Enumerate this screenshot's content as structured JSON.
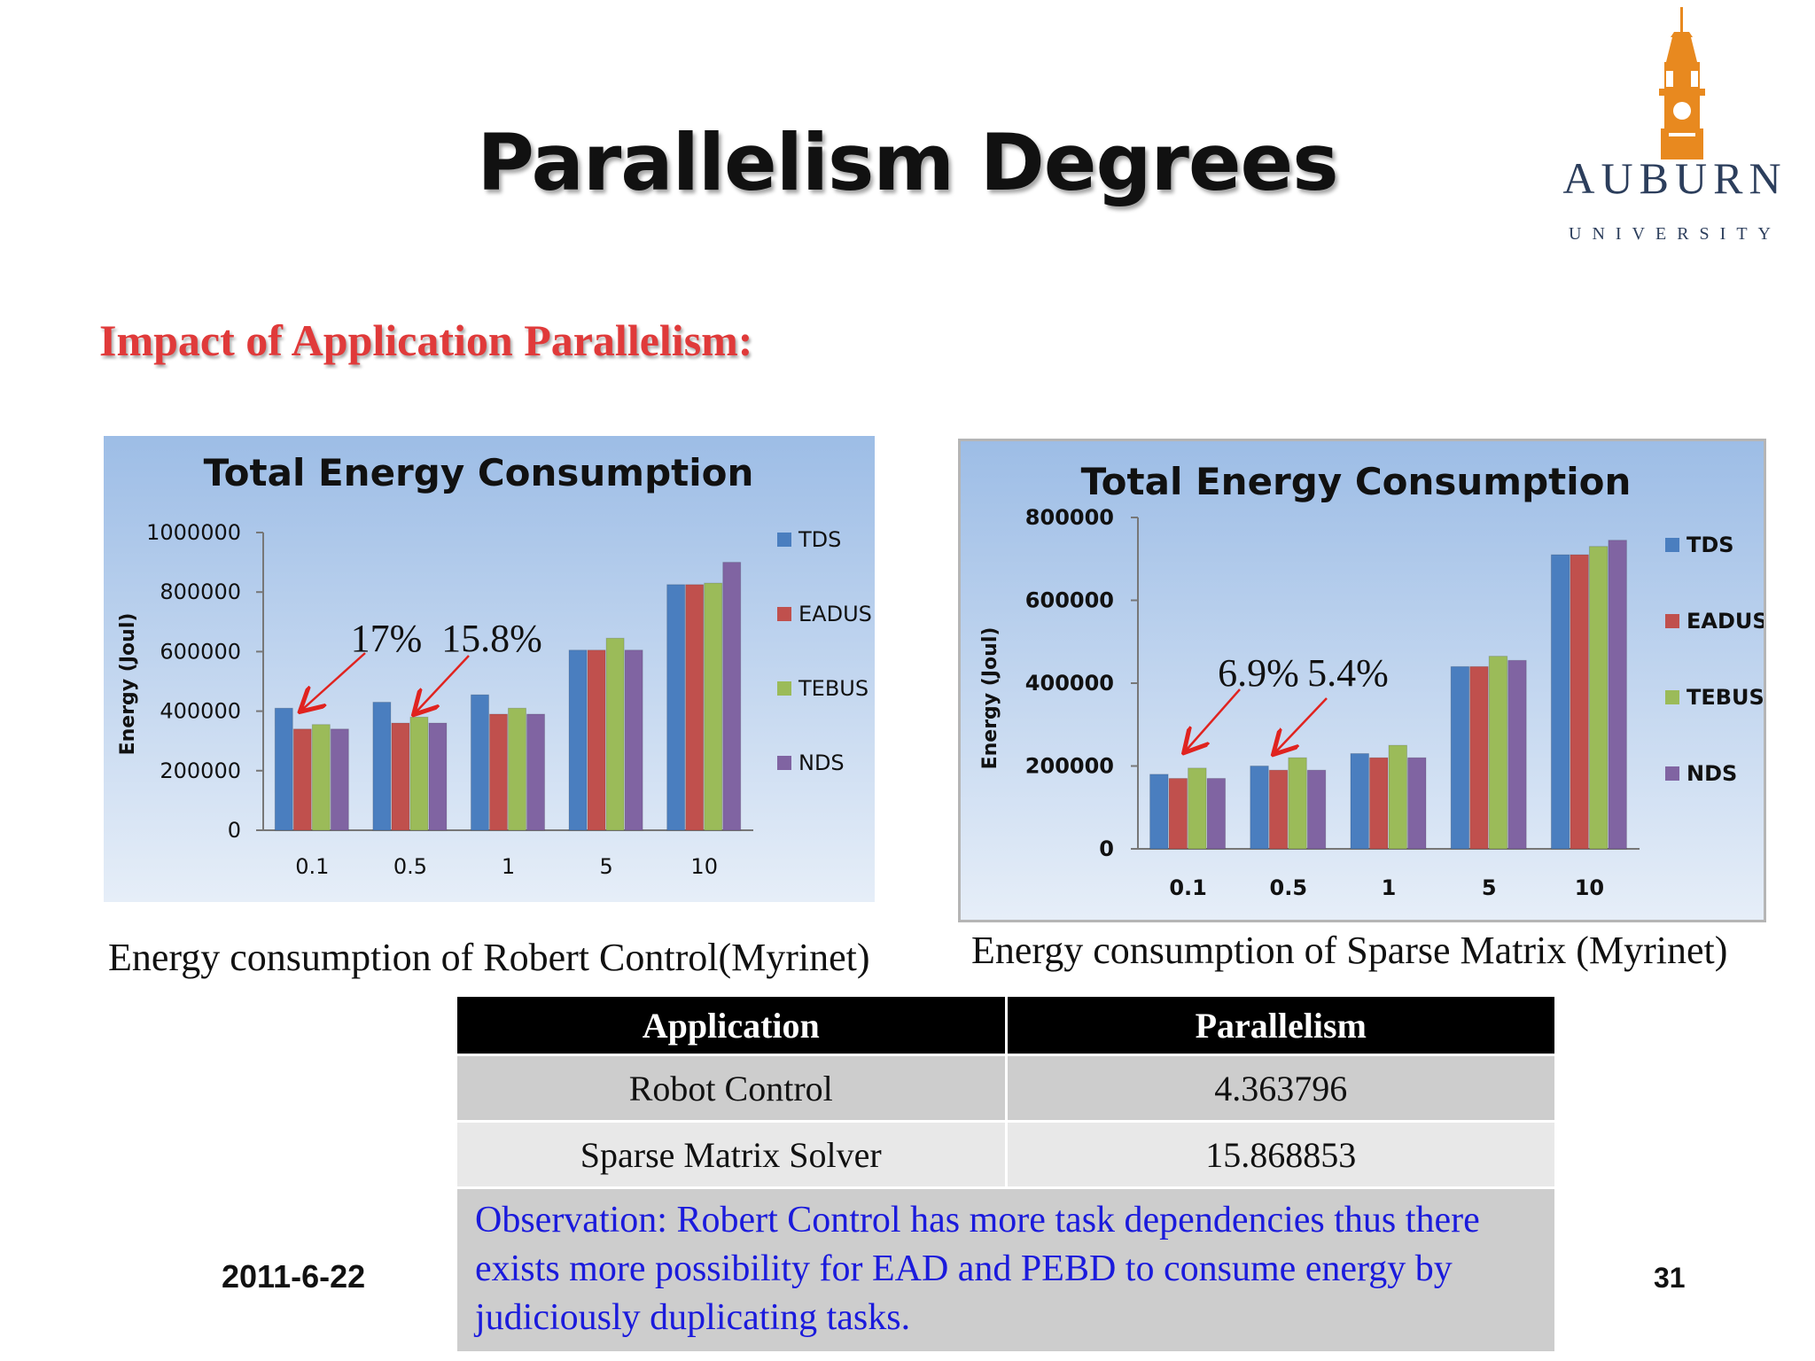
{
  "slide": {
    "title": "Parallelism Degrees",
    "subtitle": "Impact of Application Parallelism:",
    "date": "2011-6-22",
    "page_number": "31"
  },
  "logo": {
    "name": "AUBURN",
    "sub": "UNIVERSITY",
    "color": "#e8891f"
  },
  "captions": {
    "left": "Energy consumption of Robert Control(Myrinet)",
    "right": "Energy consumption of Sparse Matrix (Myrinet)"
  },
  "colors": {
    "TDS": "#4a7ebf",
    "EADUS": "#c0504d",
    "TEBUS": "#9bbb59",
    "NDS": "#8064a2"
  },
  "chart_data": [
    {
      "type": "bar",
      "title": "Total Energy Consumption",
      "ylabel": "Energy (Joul)",
      "xlabel": "",
      "categories": [
        "0.1",
        "0.5",
        "1",
        "5",
        "10"
      ],
      "ylim": [
        0,
        1000000
      ],
      "yticks": [
        "0",
        "200000",
        "400000",
        "600000",
        "800000",
        "1000000"
      ],
      "legend_position": "right",
      "grid": false,
      "series": [
        {
          "name": "TDS",
          "values": [
            410000,
            430000,
            455000,
            605000,
            825000
          ]
        },
        {
          "name": "EADUS",
          "values": [
            340000,
            360000,
            390000,
            605000,
            825000
          ]
        },
        {
          "name": "TEBUS",
          "values": [
            355000,
            380000,
            410000,
            645000,
            830000
          ]
        },
        {
          "name": "NDS",
          "values": [
            340000,
            360000,
            390000,
            605000,
            900000
          ]
        }
      ],
      "annotations": [
        {
          "text": "17%",
          "category": "0.1"
        },
        {
          "text": "15.8%",
          "category": "0.5"
        }
      ]
    },
    {
      "type": "bar",
      "title": "Total Energy Consumption",
      "ylabel": "Energy (Joul)",
      "xlabel": "",
      "categories": [
        "0.1",
        "0.5",
        "1",
        "5",
        "10"
      ],
      "ylim": [
        0,
        800000
      ],
      "yticks": [
        "0",
        "200000",
        "400000",
        "600000",
        "800000"
      ],
      "legend_position": "right",
      "grid": false,
      "series": [
        {
          "name": "TDS",
          "values": [
            180000,
            200000,
            230000,
            440000,
            710000
          ]
        },
        {
          "name": "EADUS",
          "values": [
            170000,
            190000,
            220000,
            440000,
            710000
          ]
        },
        {
          "name": "TEBUS",
          "values": [
            195000,
            220000,
            250000,
            465000,
            730000
          ]
        },
        {
          "name": "NDS",
          "values": [
            170000,
            190000,
            220000,
            455000,
            745000
          ]
        }
      ],
      "annotations": [
        {
          "text": "6.9%",
          "category": "0.1"
        },
        {
          "text": "5.4%",
          "category": "0.5"
        }
      ]
    }
  ],
  "table": {
    "headers": [
      "Application",
      "Parallelism"
    ],
    "rows": [
      [
        "Robot Control",
        "4.363796"
      ],
      [
        "Sparse Matrix Solver",
        "15.868853"
      ]
    ],
    "observation": "Observation: Robert Control has more task dependencies thus there exists more possibility for EAD and PEBD to consume energy by judiciously duplicating tasks."
  }
}
